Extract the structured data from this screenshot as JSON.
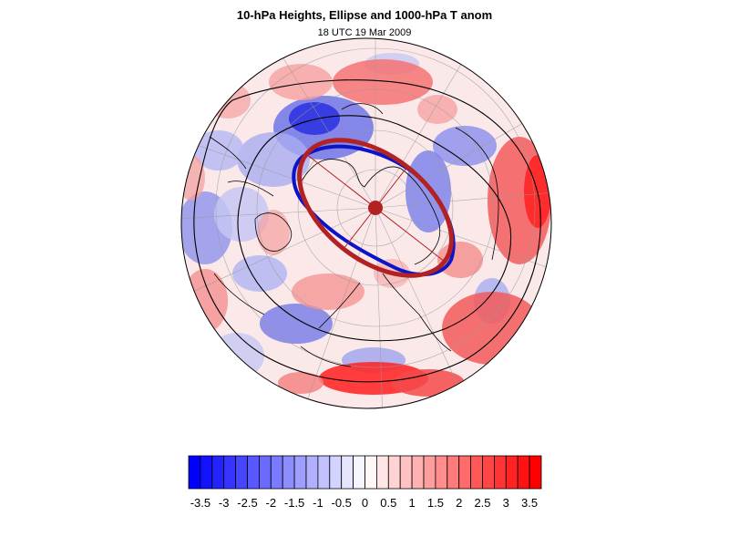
{
  "figure": {
    "title": "10-hPa Heights, Ellipse and 1000-hPa T anom",
    "subtitle": "18 UTC 19 Mar 2009"
  },
  "colorbar": {
    "min": -3.75,
    "max": 3.75,
    "step": 0.25,
    "tick_labels": [
      "-3.5",
      "-3",
      "-2.5",
      "-2",
      "-1.5",
      "-1",
      "-0.5",
      "0",
      "0.5",
      "1",
      "1.5",
      "2",
      "2.5",
      "3",
      "3.5"
    ],
    "tick_values": [
      -3.5,
      -3,
      -2.5,
      -2,
      -1.5,
      -1,
      -0.5,
      0,
      0.5,
      1,
      1.5,
      2,
      2.5,
      3,
      3.5
    ],
    "negative_color": "#0000ff",
    "positive_color": "#ff0000",
    "neutral_color": "#ffffff"
  },
  "colors": {
    "fitted_ellipse": "#b22222",
    "vortex_contour": "#0a14c8",
    "height_contours": "#000000",
    "coastlines": "#000000",
    "graticule": "#9a9a9a"
  }
}
